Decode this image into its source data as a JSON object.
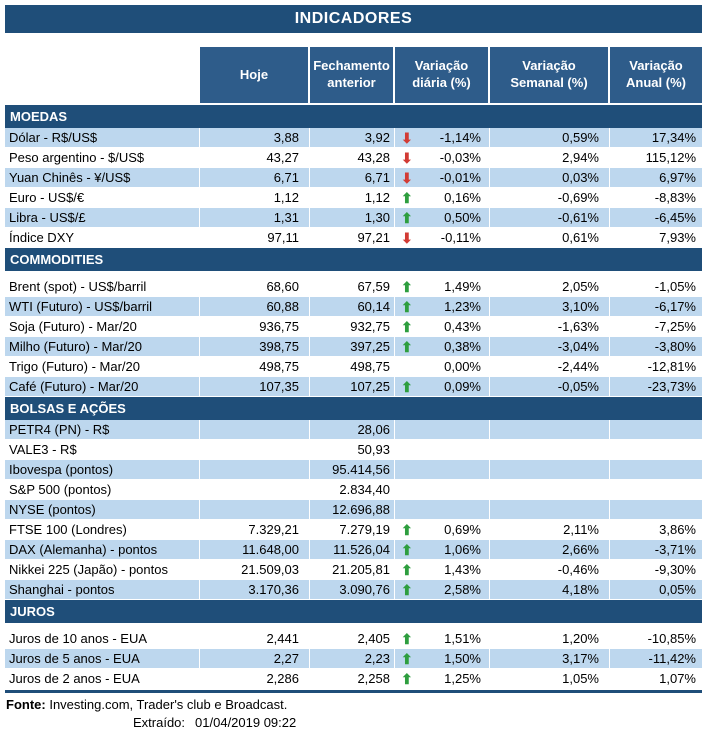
{
  "title": "INDICADORES",
  "colors": {
    "navy": "#1F4E79",
    "header_blue": "#2E5C8A",
    "row_shade": "#BDD7EE",
    "arrow_up": "#2E9E3F",
    "arrow_down": "#D23B34"
  },
  "icons": {
    "up": "⬆",
    "down": "⬇"
  },
  "chart_data": {
    "type": "table",
    "title": "INDICADORES",
    "columns": [
      "",
      "Hoje",
      "Fechamento anterior",
      "Variação diária (%)",
      "Variação Semanal (%)",
      "Variação Anual (%)"
    ],
    "sections": [
      {
        "name": "MOEDAS",
        "start_shaded": true,
        "gap_after_header": false,
        "rows": [
          {
            "label": "Dólar - R$/US$",
            "today": "3,88",
            "prev": "3,92",
            "arrow": "down",
            "daily": "-1,14%",
            "weekly": "0,59%",
            "annual": "17,34%"
          },
          {
            "label": "Peso argentino - $/US$",
            "today": "43,27",
            "prev": "43,28",
            "arrow": "down",
            "daily": "-0,03%",
            "weekly": "2,94%",
            "annual": "115,12%"
          },
          {
            "label": "Yuan Chinês - ¥/US$",
            "today": "6,71",
            "prev": "6,71",
            "arrow": "down",
            "daily": "-0,01%",
            "weekly": "0,03%",
            "annual": "6,97%"
          },
          {
            "label": "Euro - US$/€",
            "today": "1,12",
            "prev": "1,12",
            "arrow": "up",
            "daily": "0,16%",
            "weekly": "-0,69%",
            "annual": "-8,83%"
          },
          {
            "label": "Libra - US$/£",
            "today": "1,31",
            "prev": "1,30",
            "arrow": "up",
            "daily": "0,50%",
            "weekly": "-0,61%",
            "annual": "-6,45%"
          },
          {
            "label": "Índice DXY",
            "today": "97,11",
            "prev": "97,21",
            "arrow": "down",
            "daily": "-0,11%",
            "weekly": "0,61%",
            "annual": "7,93%"
          }
        ]
      },
      {
        "name": "COMMODITIES",
        "start_shaded": false,
        "gap_after_header": true,
        "rows": [
          {
            "label": "Brent (spot) - US$/barril",
            "today": "68,60",
            "prev": "67,59",
            "arrow": "up",
            "daily": "1,49%",
            "weekly": "2,05%",
            "annual": "-1,05%"
          },
          {
            "label": "WTI (Futuro) - US$/barril",
            "today": "60,88",
            "prev": "60,14",
            "arrow": "up",
            "daily": "1,23%",
            "weekly": "3,10%",
            "annual": "-6,17%"
          },
          {
            "label": "Soja (Futuro) - Mar/20",
            "today": "936,75",
            "prev": "932,75",
            "arrow": "up",
            "daily": "0,43%",
            "weekly": "-1,63%",
            "annual": "-7,25%"
          },
          {
            "label": "Milho (Futuro) - Mar/20",
            "today": "398,75",
            "prev": "397,25",
            "arrow": "up",
            "daily": "0,38%",
            "weekly": "-3,04%",
            "annual": "-3,80%"
          },
          {
            "label": "Trigo (Futuro) - Mar/20",
            "today": "498,75",
            "prev": "498,75",
            "arrow": "",
            "daily": "0,00%",
            "weekly": "-2,44%",
            "annual": "-12,81%"
          },
          {
            "label": "Café (Futuro) - Mar/20",
            "today": "107,35",
            "prev": "107,25",
            "arrow": "up",
            "daily": "0,09%",
            "weekly": "-0,05%",
            "annual": "-23,73%"
          }
        ]
      },
      {
        "name": "BOLSAS E AÇÕES",
        "start_shaded": true,
        "gap_after_header": false,
        "rows": [
          {
            "label": "PETR4 (PN) - R$",
            "today": "",
            "prev": "28,06",
            "arrow": "",
            "daily": "",
            "weekly": "",
            "annual": ""
          },
          {
            "label": "VALE3 - R$",
            "today": "",
            "prev": "50,93",
            "arrow": "",
            "daily": "",
            "weekly": "",
            "annual": ""
          },
          {
            "label": "Ibovespa (pontos)",
            "today": "",
            "prev": "95.414,56",
            "arrow": "",
            "daily": "",
            "weekly": "",
            "annual": ""
          },
          {
            "label": "S&P 500 (pontos)",
            "today": "",
            "prev": "2.834,40",
            "arrow": "",
            "daily": "",
            "weekly": "",
            "annual": ""
          },
          {
            "label": "NYSE (pontos)",
            "today": "",
            "prev": "12.696,88",
            "arrow": "",
            "daily": "",
            "weekly": "",
            "annual": ""
          },
          {
            "label": "FTSE 100 (Londres)",
            "today": "7.329,21",
            "prev": "7.279,19",
            "arrow": "up",
            "daily": "0,69%",
            "weekly": "2,11%",
            "annual": "3,86%"
          },
          {
            "label": "DAX (Alemanha) - pontos",
            "today": "11.648,00",
            "prev": "11.526,04",
            "arrow": "up",
            "daily": "1,06%",
            "weekly": "2,66%",
            "annual": "-3,71%"
          },
          {
            "label": "Nikkei 225 (Japão) - pontos",
            "today": "21.509,03",
            "prev": "21.205,81",
            "arrow": "up",
            "daily": "1,43%",
            "weekly": "-0,46%",
            "annual": "-9,30%"
          },
          {
            "label": "Shanghai - pontos",
            "today": "3.170,36",
            "prev": "3.090,76",
            "arrow": "up",
            "daily": "2,58%",
            "weekly": "4,18%",
            "annual": "0,05%"
          }
        ]
      },
      {
        "name": "JUROS",
        "start_shaded": false,
        "gap_after_header": true,
        "rows": [
          {
            "label": "Juros de 10 anos - EUA",
            "today": "2,441",
            "prev": "2,405",
            "arrow": "up",
            "daily": "1,51%",
            "weekly": "1,20%",
            "annual": "-10,85%"
          },
          {
            "label": "Juros de 5 anos - EUA",
            "today": "2,27",
            "prev": "2,23",
            "arrow": "up",
            "daily": "1,50%",
            "weekly": "3,17%",
            "annual": "-11,42%"
          },
          {
            "label": "Juros de 2 anos - EUA",
            "today": "2,286",
            "prev": "2,258",
            "arrow": "up",
            "daily": "1,25%",
            "weekly": "1,05%",
            "annual": "1,07%"
          }
        ]
      }
    ]
  },
  "footer": {
    "source_label": "Fonte:",
    "source_text": " Investing.com, Trader's club e Broadcast.",
    "extracted_label": "Extraído:",
    "extracted_value": "01/04/2019 09:22"
  }
}
